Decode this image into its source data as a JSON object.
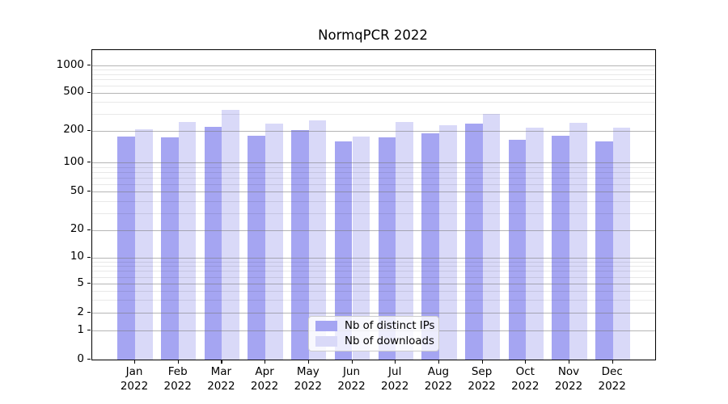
{
  "title": "NormqPCR 2022",
  "chart_data": {
    "type": "bar",
    "title": "NormqPCR 2022",
    "categories": [
      "Jan",
      "Feb",
      "Mar",
      "Apr",
      "May",
      "Jun",
      "Jul",
      "Aug",
      "Sep",
      "Oct",
      "Nov",
      "Dec"
    ],
    "category_year": "2022",
    "series": [
      {
        "name": "Nb of distinct IPs",
        "color": "#a5a5f2",
        "values": [
          175,
          172,
          218,
          180,
          204,
          157,
          173,
          187,
          235,
          164,
          180,
          157
        ]
      },
      {
        "name": "Nb of downloads",
        "color": "#d9d9f8",
        "values": [
          206,
          245,
          329,
          235,
          254,
          176,
          245,
          226,
          298,
          213,
          241,
          213
        ]
      }
    ],
    "xlabel": "",
    "ylabel": "",
    "y_axis": {
      "scale": "log",
      "tick_labels": [
        "1000",
        "500",
        "200",
        "100",
        "50",
        "20",
        "10",
        "5",
        "2",
        "1",
        "0"
      ],
      "major_ticks": [
        1000,
        500,
        200,
        100,
        50,
        20,
        10,
        5,
        2,
        1,
        0
      ],
      "minor_ticks": [
        3,
        4,
        6,
        7,
        8,
        9,
        30,
        40,
        60,
        70,
        80,
        90,
        300,
        400,
        600,
        700,
        800,
        900
      ],
      "ylim": [
        0,
        1450
      ]
    },
    "legend_position": "lower-center",
    "grid": true
  }
}
